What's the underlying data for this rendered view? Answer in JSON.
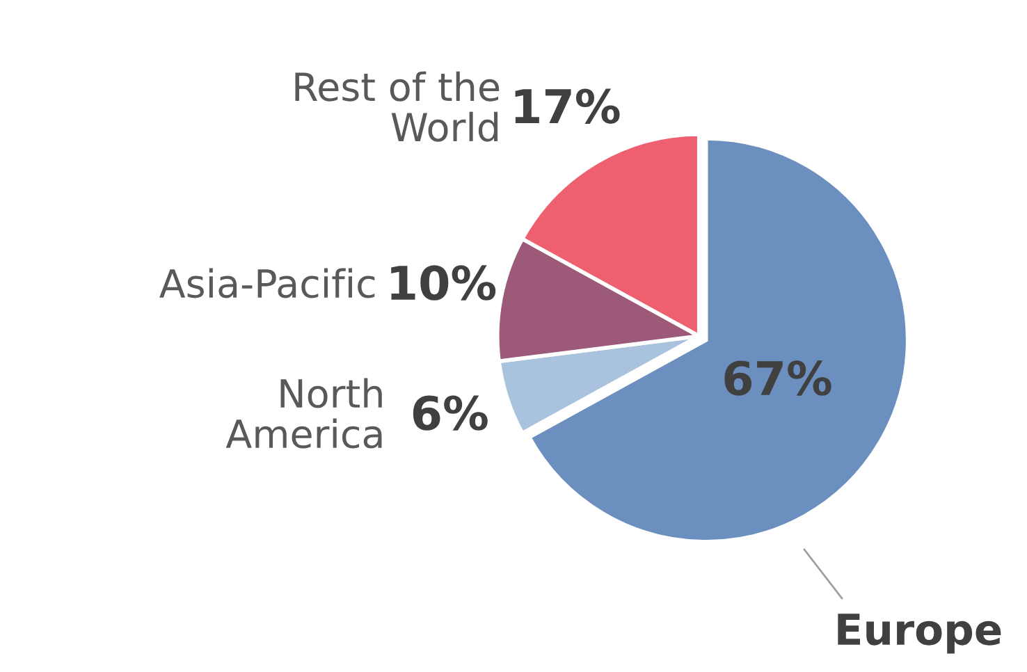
{
  "chart_data": {
    "type": "pie",
    "categories": [
      "Europe",
      "North America",
      "Asia-Pacific",
      "Rest of the World"
    ],
    "values": [
      67,
      6,
      10,
      17
    ],
    "colors": [
      "#6b8fbf",
      "#a9c3df",
      "#9c5a78",
      "#ee6070"
    ],
    "value_labels": [
      "67%",
      "6%",
      "10%",
      "17%"
    ]
  }
}
